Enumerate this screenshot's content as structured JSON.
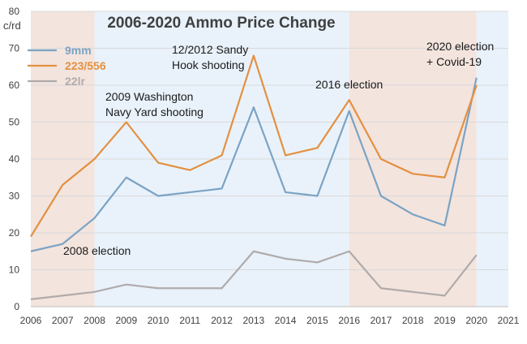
{
  "chart_data": {
    "type": "line",
    "title": "2006-2020 Ammo Price Change",
    "ylabel": "c/rd",
    "xlabel": "",
    "x": [
      2006,
      2007,
      2008,
      2009,
      2010,
      2011,
      2012,
      2013,
      2014,
      2015,
      2016,
      2017,
      2018,
      2019,
      2020
    ],
    "xticks": [
      "2006",
      "2007",
      "2008",
      "2009",
      "2010",
      "2011",
      "2012",
      "2013",
      "2014",
      "2015",
      "2016",
      "2017",
      "2018",
      "2019",
      "2020",
      "2021"
    ],
    "xlim": [
      2006,
      2021
    ],
    "ylim": [
      0,
      80
    ],
    "yticks": [
      "0",
      "10",
      "20",
      "30",
      "40",
      "50",
      "60",
      "70",
      "80"
    ],
    "grid": true,
    "legend_position": "top-left",
    "series": [
      {
        "name": "9mm",
        "color": "#7ba3c4",
        "values": [
          15,
          17,
          24,
          35,
          30,
          31,
          32,
          54,
          31,
          30,
          53,
          30,
          25,
          22,
          62
        ]
      },
      {
        "name": "223/556",
        "color": "#e39040",
        "values": [
          19,
          33,
          40,
          50,
          39,
          37,
          41,
          68,
          41,
          43,
          56,
          40,
          36,
          35,
          60
        ]
      },
      {
        "name": "22lr",
        "color": "#b0abab",
        "values": [
          2,
          3,
          4,
          6,
          5,
          5,
          5,
          15,
          13,
          12,
          15,
          5,
          4,
          3,
          14
        ]
      }
    ],
    "shaded_regions": [
      {
        "from": 2006,
        "to": 2008,
        "color": "#f3e4de"
      },
      {
        "from": 2008,
        "to": 2016,
        "color": "#e9f2fb"
      },
      {
        "from": 2016,
        "to": 2020,
        "color": "#f3e4de"
      },
      {
        "from": 2020,
        "to": 2021,
        "color": "#e9f2fb"
      }
    ],
    "annotations": [
      {
        "name": "annotation-2008-election",
        "lines": [
          "2008 election"
        ]
      },
      {
        "name": "annotation-2009-navy-yard",
        "lines": [
          "2009 Washington",
          "Navy Yard shooting"
        ]
      },
      {
        "name": "annotation-2012-sandy-hook",
        "lines": [
          "12/2012 Sandy",
          "Hook shooting"
        ]
      },
      {
        "name": "annotation-2016-election",
        "lines": [
          "2016 election"
        ]
      },
      {
        "name": "annotation-2020-election",
        "lines": [
          "2020 election",
          "+ Covid-19"
        ]
      }
    ]
  }
}
